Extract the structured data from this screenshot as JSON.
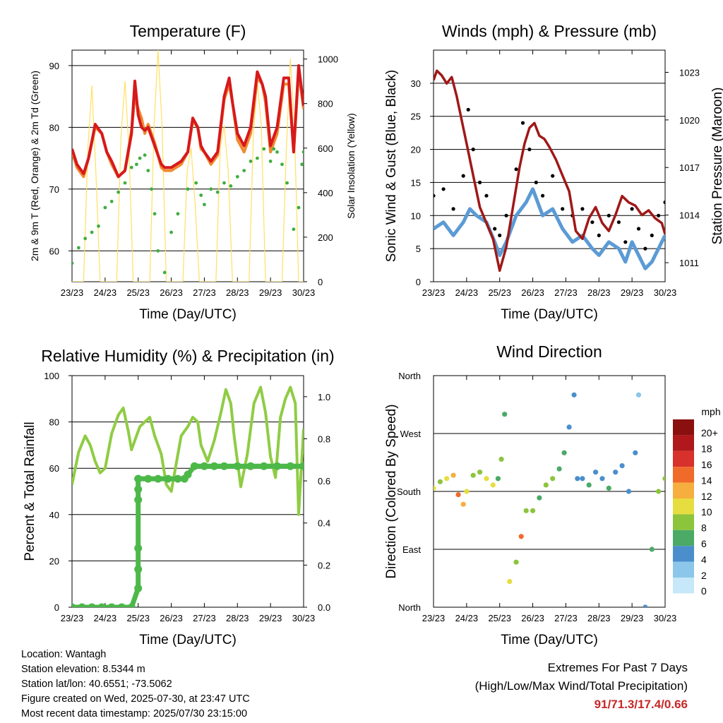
{
  "time_ticks": [
    "23/23",
    "24/23",
    "25/23",
    "26/23",
    "27/23",
    "28/23",
    "29/23",
    "30/23"
  ],
  "colors": {
    "temp_2m": "#d7191c",
    "temp_9m": "#f08a2e",
    "dewpoint": "#3fae3f",
    "solar": "#ffe060",
    "wind": "#5b9bd5",
    "gust": "#000000",
    "pressure": "#a01818",
    "rh": "#8fcc44",
    "precip": "#4cb848",
    "extreme_text": "#c62828"
  },
  "chart_data": [
    {
      "type": "line",
      "id": "temperature",
      "title": "Temperature (F)",
      "xlabel": "Time (Day/UTC)",
      "ylabel_left": "2m & 9m T (Red, Orange) & 2m Td (Green)",
      "ylabel_right": "Solar Insolation (Yellow)",
      "ylim": [
        55,
        92.5
      ],
      "y2lim": [
        0,
        1040
      ],
      "yticks": [
        "60",
        "70",
        "80",
        "90"
      ],
      "y2ticks": [
        "0",
        "200",
        "400",
        "600",
        "800",
        "1000"
      ],
      "xlim": [
        0,
        7
      ],
      "series": [
        {
          "name": "2m T",
          "x": [
            0,
            0.15,
            0.35,
            0.5,
            0.7,
            0.9,
            1.05,
            1.2,
            1.4,
            1.6,
            1.8,
            1.9,
            2.0,
            2.1,
            2.2,
            2.3,
            2.5,
            2.7,
            2.8,
            3.0,
            3.3,
            3.5,
            3.65,
            3.8,
            3.9,
            4.0,
            4.2,
            4.4,
            4.6,
            4.75,
            4.85,
            5.0,
            5.2,
            5.4,
            5.6,
            5.75,
            5.85,
            6.0,
            6.2,
            6.4,
            6.55,
            6.7,
            6.85,
            7.0
          ],
          "y": [
            76.5,
            74,
            72.5,
            75,
            80.5,
            79,
            76,
            74.5,
            72,
            73,
            79,
            87.5,
            82,
            80,
            79.5,
            80,
            77,
            74,
            73.5,
            73.5,
            74.5,
            76,
            81.5,
            80,
            77,
            76,
            74.5,
            76,
            85,
            88,
            84,
            79,
            77,
            80,
            89,
            87,
            85,
            77,
            80,
            88,
            88,
            76,
            90,
            83.5
          ]
        },
        {
          "name": "9m T",
          "x": [
            0,
            0.15,
            0.35,
            0.5,
            0.7,
            0.9,
            1.05,
            1.2,
            1.4,
            1.6,
            1.8,
            1.9,
            2.0,
            2.1,
            2.2,
            2.3,
            2.5,
            2.7,
            2.8,
            3.0,
            3.3,
            3.5,
            3.65,
            3.8,
            3.9,
            4.0,
            4.2,
            4.4,
            4.6,
            4.75,
            4.85,
            5.0,
            5.2,
            5.4,
            5.6,
            5.75,
            5.85,
            6.0,
            6.2,
            6.4,
            6.55,
            6.7,
            6.85,
            7.0
          ],
          "y": [
            76,
            73.5,
            72,
            75,
            80,
            79,
            76,
            74,
            72,
            73,
            79.5,
            85,
            83,
            81.5,
            79,
            80.5,
            77.5,
            73.5,
            73,
            73,
            74,
            76,
            81,
            80,
            76.5,
            76,
            74,
            75.5,
            84.5,
            87,
            84,
            78,
            76,
            79,
            88,
            87,
            84,
            76,
            79,
            87,
            87,
            76,
            89,
            83
          ]
        },
        {
          "name": "2m Td",
          "x": [
            0,
            0.2,
            0.4,
            0.6,
            0.8,
            1.0,
            1.2,
            1.4,
            1.6,
            1.8,
            1.95,
            2.05,
            2.2,
            2.3,
            2.4,
            2.5,
            2.6,
            2.8,
            3.0,
            3.2,
            3.5,
            3.75,
            3.9,
            4.0,
            4.2,
            4.4,
            4.6,
            4.8,
            5.0,
            5.2,
            5.4,
            5.6,
            5.8,
            6.0,
            6.1,
            6.2,
            6.35,
            6.5,
            6.7,
            6.85,
            6.95,
            7.0
          ],
          "y": [
            58,
            60.5,
            62,
            63,
            64,
            67,
            68,
            69.5,
            71,
            73.5,
            74,
            75,
            75.5,
            73,
            70,
            66,
            60,
            56.5,
            63,
            66,
            70,
            71,
            69,
            67.5,
            70,
            69.5,
            71,
            70.5,
            72,
            73,
            74.5,
            75,
            76.5,
            74.5,
            76.5,
            76,
            74,
            71,
            63.5,
            67,
            74,
            76
          ]
        },
        {
          "name": "Solar Insolation",
          "axis": "right",
          "x": [
            0,
            0.35,
            0.48,
            0.6,
            0.72,
            0.85,
            1.35,
            1.48,
            1.6,
            1.72,
            1.85,
            2.35,
            2.48,
            2.6,
            2.72,
            2.85,
            3.35,
            3.48,
            3.6,
            3.72,
            3.85,
            4.35,
            4.48,
            4.6,
            4.72,
            4.85,
            5.35,
            5.48,
            5.6,
            5.72,
            5.85,
            6.35,
            6.48,
            6.6,
            6.72,
            6.85,
            7.0
          ],
          "y": [
            0,
            0,
            600,
            880,
            500,
            0,
            0,
            650,
            900,
            600,
            0,
            0,
            700,
            1040,
            700,
            0,
            0,
            500,
            600,
            350,
            0,
            0,
            600,
            700,
            500,
            0,
            0,
            650,
            900,
            700,
            0,
            0,
            600,
            1000,
            700,
            0,
            0
          ]
        }
      ]
    },
    {
      "type": "line",
      "id": "winds",
      "title": "Winds (mph) & Pressure (mb)",
      "xlabel": "Time (Day/UTC)",
      "ylabel_left": "Sonic Wind & Gust (Blue, Black)",
      "ylabel_right": "Station Pressure (Maroon)",
      "ylim": [
        0,
        35
      ],
      "y2lim": [
        1009.8,
        1024.4
      ],
      "yticks": [
        "0",
        "5",
        "10",
        "15",
        "20",
        "25",
        "30"
      ],
      "y2ticks": [
        "1011",
        "1014",
        "1017",
        "1020",
        "1023"
      ],
      "xlim": [
        0,
        7
      ],
      "series": [
        {
          "name": "Sonic Wind",
          "x": [
            0,
            0.3,
            0.6,
            0.9,
            1.1,
            1.3,
            1.6,
            1.85,
            2.0,
            2.2,
            2.5,
            2.8,
            3.0,
            3.3,
            3.6,
            3.9,
            4.2,
            4.5,
            4.8,
            5.0,
            5.3,
            5.6,
            5.8,
            6.0,
            6.2,
            6.4,
            6.6,
            6.8,
            7.0
          ],
          "y": [
            8,
            9,
            7,
            9,
            11,
            10,
            9,
            6,
            4,
            6,
            10,
            12,
            14,
            10,
            11,
            8,
            6,
            7,
            5,
            4,
            6,
            5,
            3,
            6,
            4,
            2,
            3,
            5,
            7
          ]
        },
        {
          "name": "Gust",
          "x": [
            0,
            0.3,
            0.6,
            0.9,
            1.05,
            1.2,
            1.4,
            1.6,
            1.85,
            2.0,
            2.2,
            2.5,
            2.7,
            2.9,
            3.1,
            3.3,
            3.6,
            3.9,
            4.2,
            4.5,
            4.8,
            5.0,
            5.3,
            5.6,
            5.8,
            6.0,
            6.2,
            6.4,
            6.6,
            6.8,
            7.0
          ],
          "y": [
            13,
            14,
            11,
            16,
            26,
            20,
            15,
            13,
            8,
            7,
            10,
            17,
            24,
            20,
            15,
            13,
            16,
            11,
            10,
            11,
            9,
            7,
            10,
            9,
            6,
            11,
            8,
            5,
            7,
            10,
            12
          ]
        },
        {
          "name": "Station Pressure",
          "axis": "right",
          "x": [
            0,
            0.1,
            0.25,
            0.4,
            0.55,
            0.7,
            0.85,
            1.0,
            1.2,
            1.4,
            1.6,
            1.8,
            1.9,
            2.0,
            2.2,
            2.4,
            2.6,
            2.75,
            2.9,
            3.05,
            3.2,
            3.35,
            3.5,
            3.7,
            3.9,
            4.1,
            4.3,
            4.5,
            4.7,
            4.9,
            5.1,
            5.3,
            5.5,
            5.7,
            5.9,
            6.1,
            6.3,
            6.5,
            6.7,
            6.9,
            7.0
          ],
          "y": [
            1022.5,
            1023.1,
            1022.8,
            1022.3,
            1022.7,
            1021.5,
            1020.0,
            1018.5,
            1016.5,
            1014.5,
            1013.5,
            1012.5,
            1011.5,
            1010.5,
            1012.0,
            1014.5,
            1017.0,
            1018.5,
            1019.5,
            1019.8,
            1019.0,
            1018.8,
            1018.3,
            1017.5,
            1016.5,
            1015.5,
            1013.0,
            1012.5,
            1013.8,
            1014.5,
            1013.5,
            1013.0,
            1014.0,
            1015.2,
            1014.8,
            1014.6,
            1014.0,
            1014.3,
            1013.8,
            1013.5,
            1012.8
          ]
        }
      ]
    },
    {
      "type": "line",
      "id": "humidity",
      "title": "Relative Humidity (%) & Precipitation (in)",
      "xlabel": "Time (Day/UTC)",
      "ylabel_left": "Percent & Total Rainfall",
      "ylim": [
        0,
        100
      ],
      "y2lim": [
        0,
        1.1
      ],
      "yticks": [
        "0",
        "20",
        "40",
        "60",
        "80",
        "100"
      ],
      "y2ticks": [
        "0.0",
        "0.2",
        "0.4",
        "0.6",
        "0.8",
        "1.0"
      ],
      "xlim": [
        0,
        7
      ],
      "series": [
        {
          "name": "Relative Humidity",
          "x": [
            0,
            0.1,
            0.2,
            0.4,
            0.55,
            0.7,
            0.85,
            1.0,
            1.2,
            1.4,
            1.55,
            1.7,
            1.8,
            1.9,
            2.05,
            2.2,
            2.35,
            2.5,
            2.7,
            2.85,
            3.0,
            3.15,
            3.3,
            3.5,
            3.65,
            3.8,
            3.9,
            4.1,
            4.3,
            4.5,
            4.65,
            4.8,
            4.9,
            5.1,
            5.3,
            5.5,
            5.7,
            5.85,
            6.0,
            6.15,
            6.3,
            6.45,
            6.6,
            6.75,
            6.85,
            7.0
          ],
          "y": [
            53,
            60,
            67,
            74,
            70,
            63,
            58,
            60,
            75,
            83,
            86,
            76,
            68,
            72,
            78,
            80,
            82,
            74,
            66,
            53,
            50,
            62,
            74,
            78,
            82,
            80,
            70,
            63,
            72,
            84,
            94,
            88,
            74,
            52,
            66,
            88,
            95,
            84,
            65,
            56,
            82,
            90,
            95,
            88,
            40,
            77
          ]
        },
        {
          "name": "Total Precipitation",
          "axis": "right",
          "markers": true,
          "x": [
            0,
            0.3,
            0.6,
            0.9,
            1.2,
            1.5,
            1.8,
            2.0,
            2.0,
            2.0,
            2.0,
            2.0,
            2.0,
            2.0,
            2.3,
            2.6,
            2.9,
            3.2,
            3.4,
            3.5,
            3.7,
            4.0,
            4.3,
            4.6,
            5.0,
            5.4,
            5.8,
            6.2,
            6.6,
            7.0
          ],
          "y": [
            0,
            0,
            0,
            0,
            0,
            0,
            0,
            0.09,
            0.18,
            0.28,
            0.51,
            0.56,
            0.61,
            0.61,
            0.61,
            0.61,
            0.61,
            0.61,
            0.61,
            0.63,
            0.67,
            0.67,
            0.67,
            0.67,
            0.67,
            0.67,
            0.67,
            0.67,
            0.67,
            0.67
          ]
        }
      ]
    },
    {
      "type": "scatter",
      "id": "wind_direction",
      "title": "Wind Direction",
      "xlabel": "Time (Day/UTC)",
      "ylabel_left": "Direction (Colored By Speed)",
      "yticks": [
        "North",
        "East",
        "South",
        "West",
        "North"
      ],
      "ylim": [
        0,
        360
      ],
      "xlim": [
        0,
        7
      ],
      "legend": {
        "title": "mph",
        "labels": [
          "0",
          "2",
          "4",
          "6",
          "8",
          "10",
          "12",
          "14",
          "16",
          "18",
          "20+"
        ],
        "colors": [
          "#c6e8f8",
          "#8cc6ea",
          "#4a8fcc",
          "#4aaa66",
          "#8cc43c",
          "#e6de40",
          "#f6ae3e",
          "#f06a2a",
          "#d8302a",
          "#b0181c",
          "#8a1010"
        ],
        "placement": "right"
      },
      "series": [
        {
          "name": "direction",
          "x": [
            0,
            0.2,
            0.4,
            0.6,
            0.75,
            0.9,
            1.0,
            1.2,
            1.4,
            1.6,
            1.8,
            1.95,
            2.05,
            2.15,
            2.3,
            2.5,
            2.65,
            2.8,
            3.0,
            3.2,
            3.4,
            3.6,
            3.8,
            3.95,
            4.1,
            4.25,
            4.35,
            4.5,
            4.7,
            4.9,
            5.1,
            5.3,
            5.5,
            5.7,
            5.9,
            6.1,
            6.2,
            6.4,
            6.6,
            6.8,
            7.0
          ],
          "y": [
            185,
            195,
            200,
            205,
            175,
            160,
            180,
            205,
            210,
            200,
            190,
            200,
            230,
            300,
            40,
            70,
            110,
            150,
            150,
            170,
            190,
            200,
            215,
            240,
            280,
            330,
            200,
            200,
            190,
            210,
            200,
            185,
            210,
            220,
            180,
            240,
            330,
            0,
            90,
            180,
            200
          ],
          "speed": [
            9,
            8,
            9,
            11,
            13,
            11,
            9,
            8,
            7,
            9,
            9,
            6,
            8,
            5,
            9,
            8,
            14,
            7,
            7,
            6,
            7,
            8,
            6,
            5,
            4,
            3,
            4,
            4,
            5,
            3,
            4,
            5,
            4,
            3,
            3,
            4,
            2,
            3,
            5,
            7,
            8
          ]
        }
      ]
    }
  ],
  "info": {
    "location": "Location: Wantagh",
    "elevation": "Station elevation: 8.5344 m",
    "latlon": "Station lat/lon: 40.6551; -73.5062",
    "created": "Figure created on Wed, 2025-07-30, at 23:47 UTC",
    "latest": "Most recent data timestamp: 2025/07/30 23:15:00"
  },
  "extremes": {
    "heading": "Extremes For Past 7 Days",
    "subheading": "(High/Low/Max Wind/Total Precipitation)",
    "values": "91/71.3/17.4/0.66"
  }
}
